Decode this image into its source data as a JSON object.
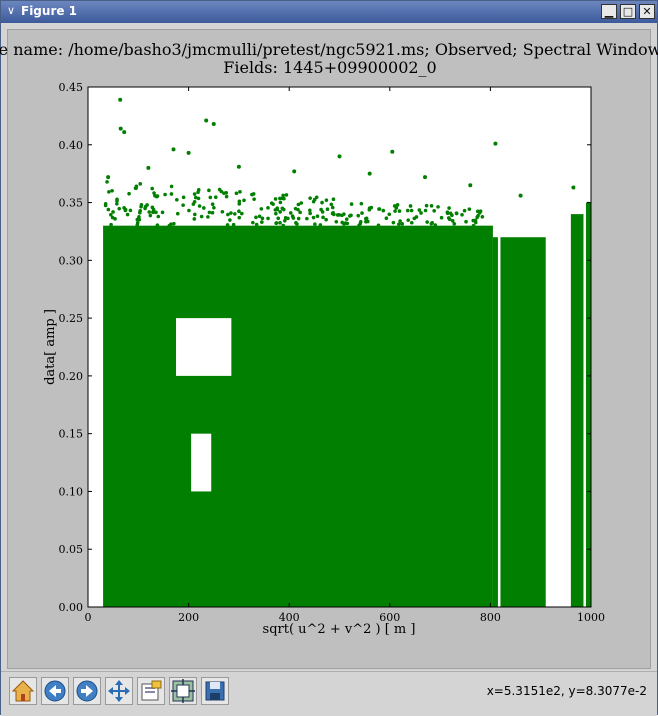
{
  "window": {
    "title": "Figure 1",
    "menu_glyph": "∨",
    "minimize_glyph": "▁",
    "maximize_glyph": "□",
    "close_glyph": "✕"
  },
  "plot": {
    "title_line1": "e name: /home/basho3/jmcmulli/pretest/ngc5921.ms; Observed; Spectral Window",
    "title_line2": "Fields: 1445+09900002_0",
    "point_color": "#007f00"
  },
  "chart_data": {
    "type": "scatter",
    "title": "e name: /home/basho3/jmcmulli/pretest/ngc5921.ms; Observed; Spectral Window / Fields: 1445+09900002_0",
    "xlabel": "sqrt( u^2 + v^2 ) [ m ]",
    "ylabel": "data[ amp ]",
    "xlim": [
      0,
      1000
    ],
    "ylim": [
      0,
      0.45
    ],
    "xticks": [
      "0",
      "200",
      "400",
      "600",
      "800",
      "1000"
    ],
    "yticks": [
      "0.00",
      "0.05",
      "0.10",
      "0.15",
      "0.20",
      "0.25",
      "0.30",
      "0.35",
      "0.40",
      "0.45"
    ],
    "grid": false,
    "color": "#007f00",
    "series": [
      {
        "dense_bands": [
          {
            "x": [
              30,
              805
            ],
            "y": [
              0.0,
              0.33
            ]
          },
          {
            "x": [
              805,
              815
            ],
            "y": [
              0.0,
              0.32
            ]
          },
          {
            "x": [
              820,
              910
            ],
            "y": [
              0.0,
              0.32
            ]
          },
          {
            "x": [
              960,
              985
            ],
            "y": [
              0.0,
              0.34
            ]
          },
          {
            "x": [
              990,
              1000
            ],
            "y": [
              0.0,
              0.35
            ]
          }
        ],
        "gaps": [
          {
            "x": [
              175,
              285
            ],
            "y": [
              0.2,
              0.25
            ]
          },
          {
            "x": [
              205,
              245
            ],
            "y": [
              0.1,
              0.15
            ]
          },
          {
            "x": [
              911,
              958
            ],
            "y": [
              0.0,
              0.45
            ]
          }
        ],
        "outliers": [
          [
            64,
            0.439
          ],
          [
            65,
            0.414
          ],
          [
            72,
            0.411
          ],
          [
            235,
            0.421
          ],
          [
            250,
            0.418
          ],
          [
            170,
            0.396
          ],
          [
            200,
            0.393
          ],
          [
            500,
            0.39
          ],
          [
            605,
            0.394
          ],
          [
            810,
            0.401
          ],
          [
            40,
            0.372
          ],
          [
            120,
            0.38
          ],
          [
            300,
            0.381
          ],
          [
            410,
            0.377
          ],
          [
            560,
            0.375
          ],
          [
            670,
            0.372
          ],
          [
            760,
            0.365
          ],
          [
            860,
            0.356
          ],
          [
            965,
            0.363
          ],
          [
            995,
            0.349
          ]
        ]
      }
    ]
  },
  "toolbar": {
    "items": [
      {
        "name": "home-button",
        "icon": "home-icon"
      },
      {
        "name": "back-button",
        "icon": "back-arrow-icon"
      },
      {
        "name": "forward-button",
        "icon": "forward-arrow-icon"
      },
      {
        "name": "pan-button",
        "icon": "pan-arrows-icon"
      },
      {
        "name": "zoom-rect-button",
        "icon": "zoom-rect-icon"
      },
      {
        "name": "subplots-button",
        "icon": "subplots-icon"
      },
      {
        "name": "save-button",
        "icon": "save-icon"
      }
    ],
    "coords": "x=5.3151e2, y=8.3077e-2"
  }
}
